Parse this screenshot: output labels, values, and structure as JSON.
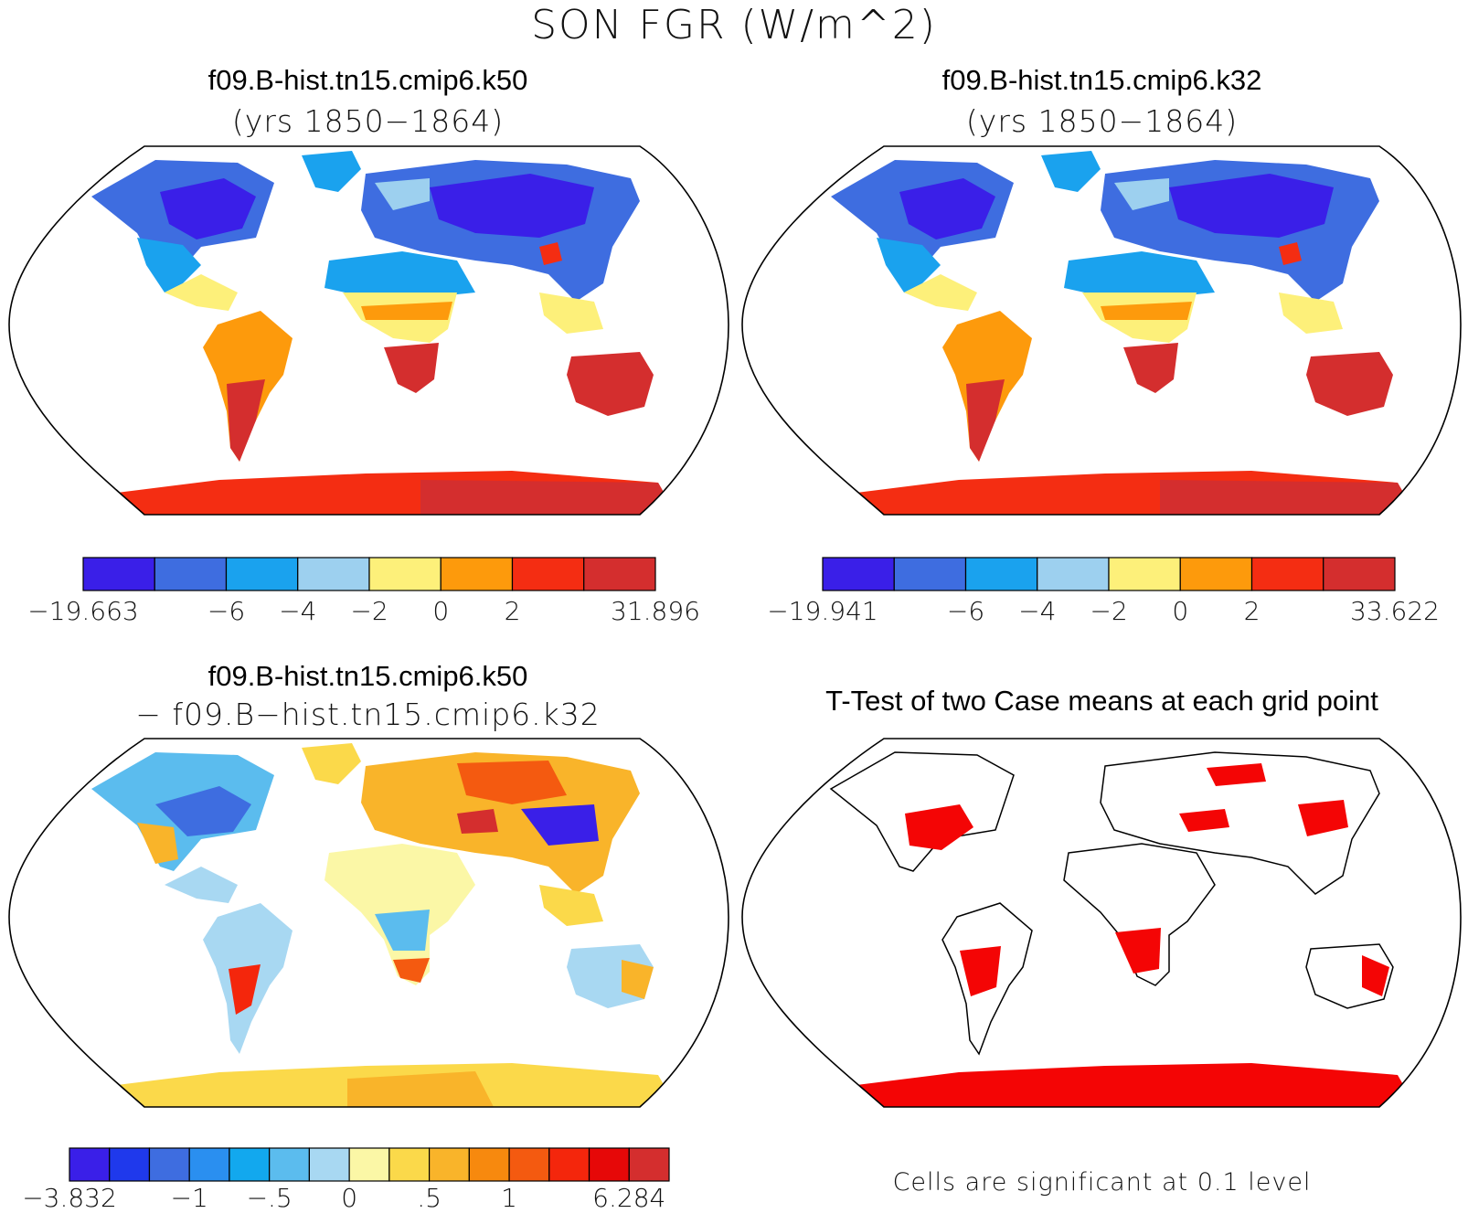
{
  "page": {
    "title": "SON FGR (W/m^2)"
  },
  "panels": [
    {
      "title": "f09.B-hist.tn15.cmip6.k50",
      "subtitle": "(yrs 1850−1864)",
      "colorbar": {
        "colors": [
          "#3a1fe8",
          "#3e6de0",
          "#1aa2ee",
          "#9dd0ef",
          "#fdf07a",
          "#fd9a0c",
          "#f42d12",
          "#d42e2e"
        ],
        "labels": [
          "−19.663",
          "−6",
          "−4",
          "−2",
          "0",
          "2",
          "31.896"
        ],
        "label_boundaries": [
          0,
          2,
          3,
          4,
          5,
          6,
          8
        ]
      }
    },
    {
      "title": "f09.B-hist.tn15.cmip6.k32",
      "subtitle": "(yrs 1850−1864)",
      "colorbar": {
        "colors": [
          "#3a1fe8",
          "#3e6de0",
          "#1aa2ee",
          "#9dd0ef",
          "#fdf07a",
          "#fd9a0c",
          "#f42d12",
          "#d42e2e"
        ],
        "labels": [
          "−19.941",
          "−6",
          "−4",
          "−2",
          "0",
          "2",
          "33.622"
        ],
        "label_boundaries": [
          0,
          2,
          3,
          4,
          5,
          6,
          8
        ]
      }
    },
    {
      "title": "f09.B-hist.tn15.cmip6.k50",
      "subtitle": "− f09.B−hist.tn15.cmip6.k32",
      "colorbar": {
        "colors": [
          "#3a1fe8",
          "#1f39ec",
          "#3e6de0",
          "#2a8ff0",
          "#12a8ee",
          "#5bbcee",
          "#a8d8f2",
          "#fbf7a6",
          "#fbd94a",
          "#f9b42a",
          "#f7890e",
          "#f45a10",
          "#f4260c",
          "#e60808",
          "#d42e2e"
        ],
        "labels": [
          "−3.832",
          "−1",
          "−.5",
          "0",
          ".5",
          "1",
          "6.284"
        ],
        "label_boundaries": [
          0,
          3,
          5,
          7,
          9,
          11,
          14
        ]
      }
    },
    {
      "title": "T-Test of two Case means at each grid point",
      "footnote": "Cells are significant at 0.1 level",
      "significant_color": "#f40505"
    }
  ]
}
